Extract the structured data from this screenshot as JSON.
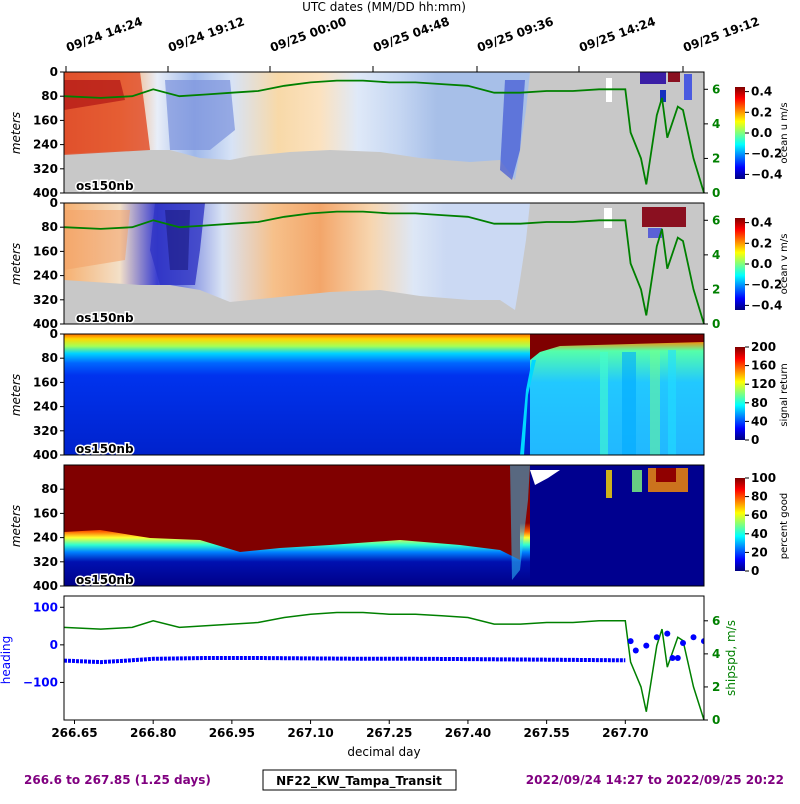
{
  "top_axis": {
    "title": "UTC dates (MM/DD hh:mm)",
    "tick_labels": [
      "09/24 14:24",
      "09/24 19:12",
      "09/25 00:00",
      "09/25 04:48",
      "09/25 09:36",
      "09/25 14:24",
      "09/25 19:12"
    ]
  },
  "chart_data": [
    {
      "type": "heatmap",
      "title": "",
      "ylabel": "meters",
      "ylim": [
        400,
        0
      ],
      "yticks": [
        0,
        80,
        160,
        240,
        320,
        400
      ],
      "inset_label": "os150nb",
      "colorbar": {
        "label": "ocean u m/s",
        "range": [
          -0.4,
          0.4
        ],
        "ticks": [
          "0.4",
          "0.2",
          "0.0",
          "−0.2",
          "−0.4"
        ],
        "colormap": "jet"
      },
      "right_axis": {
        "label": "",
        "ticks": [
          "6",
          "4",
          "2",
          "0"
        ],
        "color": "#008000"
      },
      "overlay_series": {
        "name": "shipspd",
        "color": "#008000"
      }
    },
    {
      "type": "heatmap",
      "title": "",
      "ylabel": "meters",
      "ylim": [
        400,
        0
      ],
      "yticks": [
        0,
        80,
        160,
        240,
        320,
        400
      ],
      "inset_label": "os150nb",
      "colorbar": {
        "label": "ocean v m/s",
        "range": [
          -0.4,
          0.4
        ],
        "ticks": [
          "0.4",
          "0.2",
          "0.0",
          "−0.2",
          "−0.4"
        ],
        "colormap": "jet"
      },
      "right_axis": {
        "label": "",
        "ticks": [
          "6",
          "4",
          "2",
          "0"
        ],
        "color": "#008000"
      },
      "overlay_series": {
        "name": "shipspd",
        "color": "#008000"
      }
    },
    {
      "type": "heatmap",
      "title": "",
      "ylabel": "meters",
      "ylim": [
        400,
        0
      ],
      "yticks": [
        0,
        80,
        160,
        240,
        320,
        400
      ],
      "inset_label": "os150nb",
      "colorbar": {
        "label": "signal return",
        "range": [
          0,
          200
        ],
        "ticks": [
          "200",
          "160",
          "120",
          "80",
          "40",
          "0"
        ],
        "colormap": "jet"
      }
    },
    {
      "type": "heatmap",
      "title": "",
      "ylabel": "meters",
      "ylim": [
        400,
        0
      ],
      "yticks": [
        80,
        160,
        240,
        320,
        400
      ],
      "inset_label": "os150nb",
      "colorbar": {
        "label": "percent good",
        "range": [
          0,
          100
        ],
        "ticks": [
          "100",
          "80",
          "60",
          "40",
          "20",
          "0"
        ],
        "colormap": "jet"
      }
    },
    {
      "type": "line",
      "title": "",
      "xlabel": "decimal day",
      "xlim": [
        266.63,
        267.85
      ],
      "xticks": [
        "266.65",
        "266.80",
        "266.95",
        "267.10",
        "267.25",
        "267.40",
        "267.55",
        "267.70"
      ],
      "left_axis": {
        "label": "heading",
        "ticks": [
          "100",
          "0",
          "−100"
        ],
        "color": "#0000ff"
      },
      "right_axis": {
        "label": "shipspd, m/s",
        "ticks": [
          "6",
          "4",
          "2",
          "0"
        ],
        "color": "#008000"
      },
      "series": [
        {
          "name": "heading",
          "color": "#0000ff",
          "x": [
            266.63,
            266.7,
            266.75,
            266.8,
            266.9,
            267.0,
            267.1,
            267.2,
            267.3,
            267.4,
            267.5,
            267.6,
            267.7,
            267.71,
            267.72,
            267.74,
            267.76,
            267.78,
            267.79,
            267.8,
            267.81,
            267.83,
            267.85
          ],
          "y": [
            -42,
            -46,
            -42,
            -37,
            -35,
            -35,
            -36,
            -37,
            -37,
            -38,
            -39,
            -40,
            -41,
            10,
            -15,
            -2,
            20,
            30,
            -35,
            -35,
            5,
            20,
            10
          ]
        },
        {
          "name": "shipspd",
          "color": "#008000",
          "x": [
            266.63,
            266.7,
            266.76,
            266.8,
            266.85,
            266.9,
            266.95,
            267.0,
            267.05,
            267.1,
            267.15,
            267.2,
            267.25,
            267.3,
            267.35,
            267.4,
            267.45,
            267.5,
            267.55,
            267.6,
            267.65,
            267.7,
            267.71,
            267.73,
            267.74,
            267.76,
            267.77,
            267.78,
            267.8,
            267.81,
            267.83,
            267.85
          ],
          "y": [
            5.6,
            5.5,
            5.6,
            6.0,
            5.6,
            5.7,
            5.8,
            5.9,
            6.2,
            6.4,
            6.5,
            6.5,
            6.4,
            6.4,
            6.3,
            6.2,
            5.8,
            5.8,
            5.9,
            5.9,
            6.0,
            6.0,
            3.5,
            2.0,
            0.5,
            4.5,
            5.5,
            3.2,
            5.0,
            4.8,
            2.0,
            0.0
          ]
        }
      ]
    }
  ],
  "footer": {
    "left": "266.6 to 267.85 (1.25 days)",
    "center": "NF22_KW_Tampa_Transit",
    "right": "2022/09/24 14:27 to 2022/09/25 20:22"
  },
  "colors": {
    "footer_text": "#800080",
    "ship_speed": "#008000",
    "heading": "#0000ff",
    "no_data": "#c8c8c8"
  }
}
